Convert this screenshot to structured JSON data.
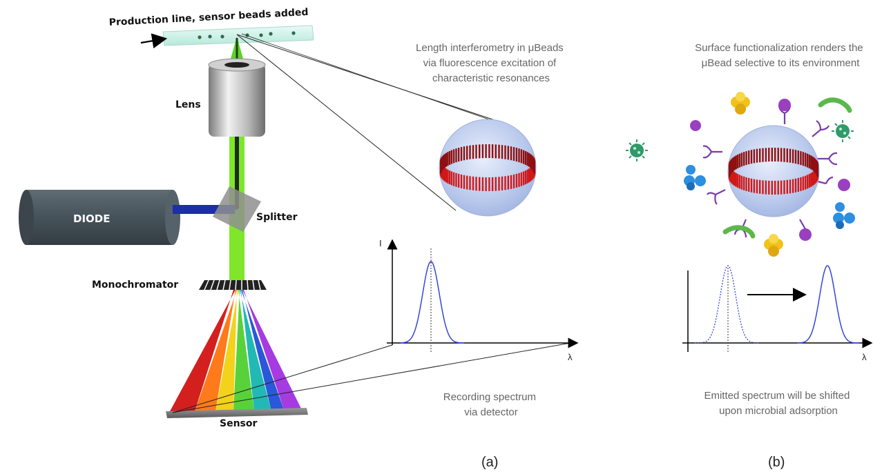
{
  "labels": {
    "production_line": "Production line, sensor beads added",
    "lens": "Lens",
    "diode": "DIODE",
    "splitter": "Splitter",
    "monochromator": "Monochromator",
    "sensor": "Sensor"
  },
  "captions": {
    "interferometry": [
      "Length interferometry  in μBeads",
      "via fluorescence excitation  of",
      "characteristic resonances"
    ],
    "functionalization": [
      "Surface functionalization  renders the",
      "μBead selective to its environment"
    ],
    "recording": [
      "Recording spectrum",
      "via detector"
    ],
    "shift": [
      "Emitted  spectrum will be shifted",
      "upon microbial adsorption"
    ]
  },
  "axes": {
    "y_label": "I",
    "x_label_a": "λ",
    "x_label_b": "λ"
  },
  "panels": {
    "a": "(a)",
    "b": "(b)"
  },
  "colors": {
    "laser_green": "#7fe62a",
    "diode_beam": "#1c2fa8",
    "diode_body": "#4e5a62",
    "spectrum_line": "#3344dd",
    "ring_red": "#d01818",
    "bead_blue": "#b9c9ec"
  },
  "icons": [
    "virus-icon",
    "bacterium-icon",
    "molecule-icon",
    "antibody-receptor-icon"
  ]
}
